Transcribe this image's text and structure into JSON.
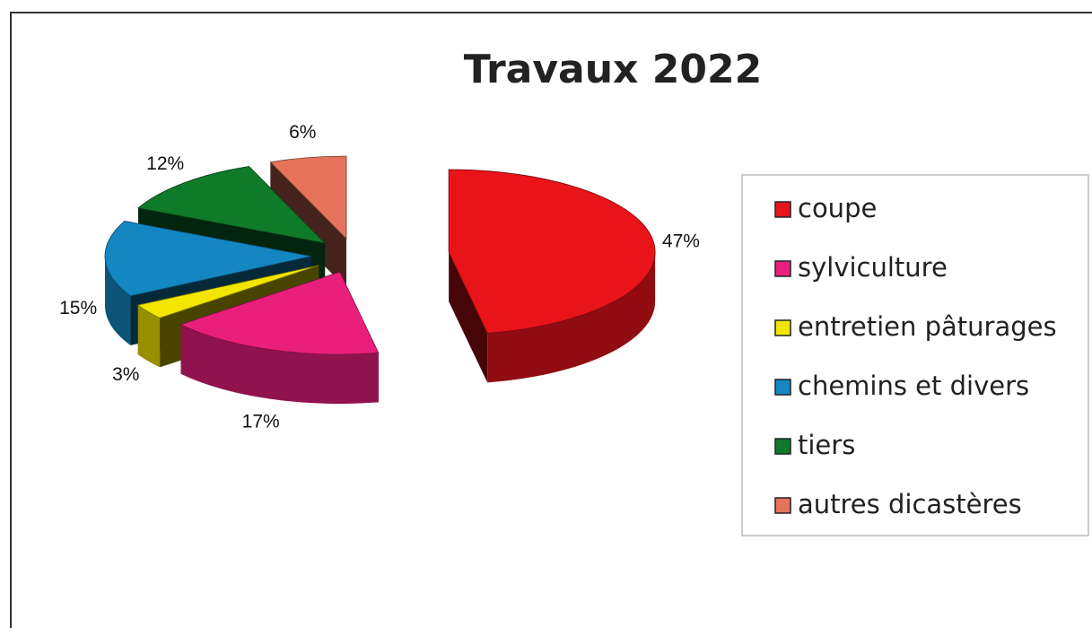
{
  "chart_data": {
    "type": "pie",
    "title": "Travaux 2022",
    "categories": [
      "coupe",
      "sylviculture",
      "entretien pâturages",
      "chemins et divers",
      "tiers",
      "autres dicastères"
    ],
    "values": [
      47,
      17,
      3,
      15,
      12,
      6
    ],
    "value_labels": [
      "47%",
      "17%",
      "3%",
      "15%",
      "12%",
      "6%"
    ],
    "colors": [
      "#e8141a",
      "#ea1f7c",
      "#f2e600",
      "#1487c2",
      "#0e7a2a",
      "#e5735c"
    ],
    "legend": "right"
  }
}
